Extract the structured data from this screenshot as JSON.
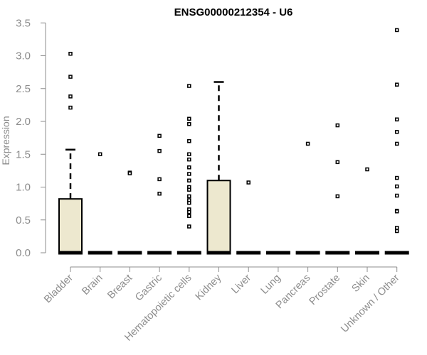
{
  "chart_data": {
    "type": "box",
    "title": "ENSG00000212354 - U6",
    "xlabel": "",
    "ylabel": "Expression",
    "ylim": [
      0,
      3.5
    ],
    "y_ticks": [
      "0.0",
      "0.5",
      "1.0",
      "1.5",
      "2.0",
      "2.5",
      "3.0",
      "3.5"
    ],
    "categories": [
      "Bladder",
      "Brain",
      "Breast",
      "Gastric",
      "Hematopoietic cells",
      "Kidney",
      "Liver",
      "Lung",
      "Pancreas",
      "Prostate",
      "Skin",
      "Unknown / Other"
    ],
    "boxes": [
      {
        "q1": 0,
        "median": 0,
        "q3": 0.82,
        "whisker_low": 0,
        "whisker_high": 1.57,
        "outliers": [
          3.03,
          2.68,
          2.38,
          2.21
        ]
      },
      {
        "q1": 0,
        "median": 0,
        "q3": 0,
        "whisker_low": 0,
        "whisker_high": 0,
        "outliers": [
          1.5
        ]
      },
      {
        "q1": 0,
        "median": 0,
        "q3": 0,
        "whisker_low": 0,
        "whisker_high": 0,
        "outliers": [
          1.22,
          1.21
        ]
      },
      {
        "q1": 0,
        "median": 0,
        "q3": 0,
        "whisker_low": 0,
        "whisker_high": 0,
        "outliers": [
          1.78,
          1.55,
          1.12,
          0.9
        ]
      },
      {
        "q1": 0,
        "median": 0,
        "q3": 0,
        "whisker_low": 0,
        "whisker_high": 0,
        "outliers": [
          2.54,
          2.04,
          1.96,
          1.7,
          1.5,
          1.42,
          1.3,
          1.2,
          1.1,
          1.0,
          0.96,
          0.86,
          0.8,
          0.76,
          0.66,
          0.62,
          0.56,
          0.4
        ]
      },
      {
        "q1": 0,
        "median": 0,
        "q3": 1.1,
        "whisker_low": 0,
        "whisker_high": 2.6,
        "outliers": []
      },
      {
        "q1": 0,
        "median": 0,
        "q3": 0,
        "whisker_low": 0,
        "whisker_high": 0,
        "outliers": [
          1.07
        ]
      },
      {
        "q1": 0,
        "median": 0,
        "q3": 0,
        "whisker_low": 0,
        "whisker_high": 0,
        "outliers": []
      },
      {
        "q1": 0,
        "median": 0,
        "q3": 0,
        "whisker_low": 0,
        "whisker_high": 0,
        "outliers": [
          1.66
        ]
      },
      {
        "q1": 0,
        "median": 0,
        "q3": 0,
        "whisker_low": 0,
        "whisker_high": 0,
        "outliers": [
          1.94,
          1.38,
          0.86
        ]
      },
      {
        "q1": 0,
        "median": 0,
        "q3": 0,
        "whisker_low": 0,
        "whisker_high": 0,
        "outliers": [
          1.27
        ]
      },
      {
        "q1": 0,
        "median": 0,
        "q3": 0,
        "whisker_low": 0,
        "whisker_high": 0,
        "outliers": [
          3.39,
          2.56,
          2.03,
          1.84,
          1.66,
          1.14,
          1.01,
          0.87,
          0.64,
          0.63,
          0.38,
          0.33
        ]
      }
    ],
    "box_fill": "#ede8cf",
    "grid": false,
    "legend": "none"
  }
}
